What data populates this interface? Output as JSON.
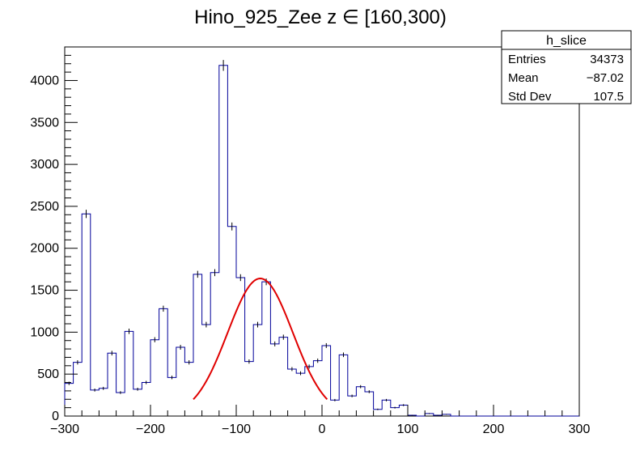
{
  "chart_data": {
    "type": "bar",
    "title": "Hino_925_Zee z  ∈ [160,300)",
    "xlabel": "",
    "ylabel": "",
    "xlim": [
      -300,
      300
    ],
    "ylim": [
      0,
      4400
    ],
    "bin_width": 10,
    "x_ticks": [
      -300,
      -200,
      -100,
      0,
      100,
      200,
      300
    ],
    "x_tick_labels": [
      "−300",
      "−200",
      "−100",
      "0",
      "100",
      "200",
      "300"
    ],
    "y_ticks": [
      0,
      500,
      1000,
      1500,
      2000,
      2500,
      3000,
      3500,
      4000
    ],
    "y_tick_labels": [
      "0",
      "500",
      "1000",
      "1500",
      "2000",
      "2500",
      "3000",
      "3500",
      "4000"
    ],
    "histogram_color": "#000099",
    "fit_color": "#e00000",
    "series": [
      {
        "bin_low_edges": [
          -300,
          -290,
          -280,
          -270,
          -260,
          -250,
          -240,
          -230,
          -220,
          -210,
          -200,
          -190,
          -180,
          -170,
          -160,
          -150,
          -140,
          -130,
          -120,
          -110,
          -100,
          -90,
          -80,
          -70,
          -60,
          -50,
          -40,
          -30,
          -20,
          -10,
          0,
          10,
          20,
          30,
          40,
          50,
          60,
          70,
          80,
          90,
          100,
          110,
          120,
          130,
          140,
          150,
          160,
          170,
          180,
          190,
          200,
          210,
          220,
          230,
          240,
          250,
          260,
          270,
          280,
          290
        ],
        "values": [
          390,
          640,
          2410,
          310,
          330,
          750,
          280,
          1010,
          320,
          400,
          910,
          1280,
          460,
          820,
          640,
          1690,
          1090,
          1710,
          4180,
          2260,
          1650,
          650,
          1090,
          1600,
          860,
          940,
          560,
          510,
          590,
          660,
          840,
          190,
          730,
          240,
          350,
          290,
          80,
          190,
          100,
          130,
          10,
          0,
          30,
          10,
          20,
          0,
          0,
          0,
          0,
          0,
          0,
          0,
          0,
          0,
          0,
          0,
          0,
          0,
          0,
          0
        ]
      },
      {
        "function": "gaussian",
        "x_range": [
          -150,
          6
        ],
        "constant": 1640,
        "mean": -72,
        "sigma": 38
      }
    ],
    "legend": {
      "name": "h_slice",
      "placement": "top-right",
      "rows": [
        {
          "label": "Entries",
          "value": "34373"
        },
        {
          "label": "Mean",
          "value": "−87.02"
        },
        {
          "label": "Std Dev",
          "value": "107.5"
        }
      ]
    }
  }
}
